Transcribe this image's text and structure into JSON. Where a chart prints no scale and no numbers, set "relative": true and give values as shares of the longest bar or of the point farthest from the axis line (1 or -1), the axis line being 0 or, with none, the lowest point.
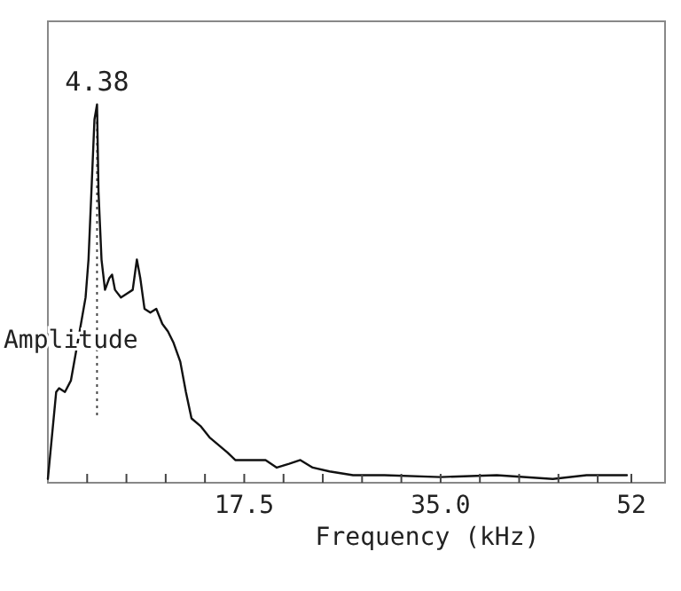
{
  "chart_data": {
    "type": "line",
    "relative": true,
    "xlabel": "Frequency (kHz)",
    "ylabel": "Amplitude",
    "xlim": [
      0,
      55
    ],
    "xticks": [
      {
        "value": 3.5,
        "label": null
      },
      {
        "value": 7,
        "label": null
      },
      {
        "value": 10.5,
        "label": null
      },
      {
        "value": 14,
        "label": null
      },
      {
        "value": 17.5,
        "label": "17.5"
      },
      {
        "value": 21,
        "label": null
      },
      {
        "value": 24.5,
        "label": null
      },
      {
        "value": 28,
        "label": null
      },
      {
        "value": 31.5,
        "label": null
      },
      {
        "value": 35,
        "label": "35.0"
      },
      {
        "value": 38.5,
        "label": null
      },
      {
        "value": 42,
        "label": null
      },
      {
        "value": 45.5,
        "label": null
      },
      {
        "value": 49,
        "label": null
      },
      52
    ],
    "x": [
      0,
      0.74,
      1.0,
      1.52,
      2.05,
      2.83,
      3.36,
      3.62,
      3.88,
      4.15,
      4.38,
      4.51,
      4.78,
      5.09,
      5.46,
      5.72,
      5.98,
      6.51,
      7.03,
      7.56,
      7.93,
      8.24,
      8.61,
      9.13,
      9.66,
      10.2,
      10.7,
      11.2,
      11.8,
      12.3,
      12.8,
      13.6,
      14.4,
      15.2,
      16.0,
      16.7,
      17.5,
      18.3,
      19.4,
      20.4,
      21.5,
      22.5,
      23.6,
      25.1,
      27.2,
      30,
      35,
      40,
      45,
      48,
      51.6
    ],
    "series": [
      {
        "color": "#111111",
        "values": [
          0.01,
          0.24,
          0.25,
          0.24,
          0.27,
          0.4,
          0.49,
          0.59,
          0.77,
          0.96,
          1,
          0.77,
          0.59,
          0.51,
          0.54,
          0.55,
          0.51,
          0.49,
          0.5,
          0.51,
          0.59,
          0.54,
          0.46,
          0.45,
          0.46,
          0.42,
          0.4,
          0.37,
          0.32,
          0.24,
          0.17,
          0.15,
          0.12,
          0.1,
          0.08,
          0.06,
          0.06,
          0.06,
          0.06,
          0.04,
          0.05,
          0.06,
          0.04,
          0.03,
          0.02,
          0.02,
          0.015,
          0.02,
          0.01,
          0.02,
          0.02
        ]
      }
    ],
    "ref_lines": [
      {
        "axis": "x",
        "value": 4.38,
        "line_style": "dotted",
        "color": "#444444"
      }
    ],
    "annotations": [
      {
        "text": "4.38",
        "x": 4.38,
        "y": 1
      }
    ],
    "grid": false,
    "marker": "none",
    "line_style": "solid"
  }
}
